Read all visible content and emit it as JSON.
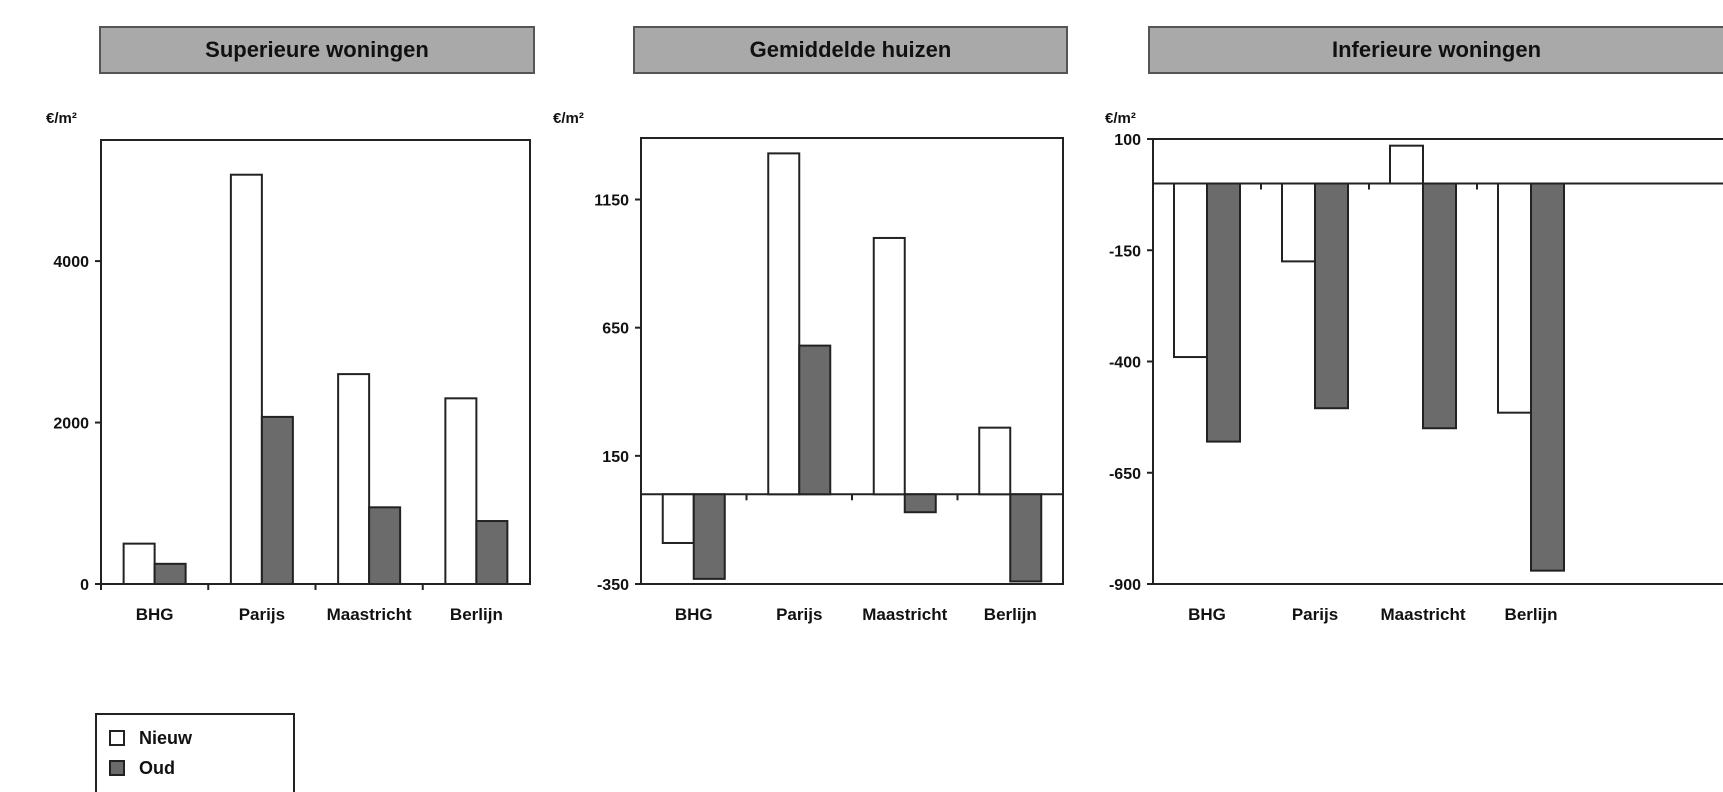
{
  "legend": {
    "new_label": "Nieuw",
    "old_label": "Oud",
    "new_color": "#ffffff",
    "old_color": "#6b6b6b"
  },
  "chart_data": [
    {
      "type": "bar",
      "title": "Superieure woningen",
      "ylabel": "€/m²",
      "categories": [
        "BHG",
        "Parijs",
        "Maastricht",
        "Berlijn"
      ],
      "ylim": [
        0,
        5500
      ],
      "yticks": [
        0,
        2000,
        4000
      ],
      "series": [
        {
          "name": "Nieuw",
          "values": [
            500,
            5070,
            2600,
            2300
          ]
        },
        {
          "name": "Oud",
          "values": [
            250,
            2070,
            950,
            780
          ]
        }
      ],
      "grid": false
    },
    {
      "type": "bar",
      "title": "Gemiddelde huizen",
      "ylabel": "€/m²",
      "categories": [
        "BHG",
        "Parijs",
        "Maastricht",
        "Berlijn"
      ],
      "ylim": [
        -350,
        1390
      ],
      "yticks": [
        -350,
        150,
        650,
        1150
      ],
      "series": [
        {
          "name": "Nieuw",
          "values": [
            -190,
            1330,
            1000,
            260
          ]
        },
        {
          "name": "Oud",
          "values": [
            -330,
            580,
            -70,
            -340
          ]
        }
      ],
      "grid": false
    },
    {
      "type": "bar",
      "title": "Inferieure woningen",
      "ylabel": "€/m²",
      "categories": [
        "BHG",
        "Parijs",
        "Maastricht",
        "Berlijn"
      ],
      "ylim": [
        -900,
        100
      ],
      "yticks": [
        -900,
        -650,
        -400,
        -150,
        100
      ],
      "series": [
        {
          "name": "Nieuw",
          "values": [
            -390,
            -175,
            85,
            -515
          ]
        },
        {
          "name": "Oud",
          "values": [
            -580,
            -505,
            -550,
            -870
          ]
        }
      ],
      "grid": false
    }
  ]
}
